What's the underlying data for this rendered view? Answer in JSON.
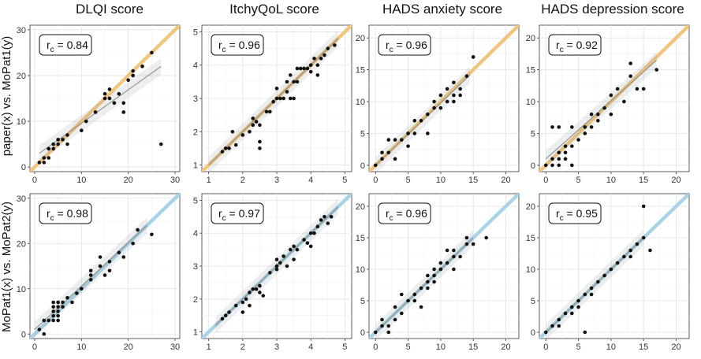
{
  "figure": {
    "col_titles": [
      "DLQI score",
      "ItchyQoL score",
      "HADS anxiety score",
      "HADS depression score"
    ],
    "row_labels": [
      "paper(x) vs. MoPat1(y)",
      "MoPat1(x) vs. MoPat2(y)"
    ],
    "identity_line_colors": [
      "#f2c57c",
      "#a9d3e6"
    ]
  },
  "chart_data": [
    {
      "type": "scatter",
      "row": 0,
      "col": 0,
      "rc": "0.84",
      "xlim": [
        -1,
        31
      ],
      "ylim": [
        -1,
        31
      ],
      "xticks": [
        0,
        10,
        20,
        30
      ],
      "yticks": [
        0,
        10,
        20,
        30
      ],
      "fit": [
        [
          1,
          3
        ],
        [
          27,
          22
        ]
      ],
      "points": [
        [
          1,
          1
        ],
        [
          2,
          2
        ],
        [
          2,
          1
        ],
        [
          3,
          2
        ],
        [
          3,
          4
        ],
        [
          4,
          4
        ],
        [
          4,
          5
        ],
        [
          5,
          5
        ],
        [
          5,
          6
        ],
        [
          6,
          6
        ],
        [
          7,
          5
        ],
        [
          7,
          7
        ],
        [
          10,
          8
        ],
        [
          11,
          10
        ],
        [
          13,
          12
        ],
        [
          15,
          15
        ],
        [
          15,
          16
        ],
        [
          16,
          17
        ],
        [
          16,
          15
        ],
        [
          17,
          14
        ],
        [
          18,
          16
        ],
        [
          19,
          14
        ],
        [
          19,
          12
        ],
        [
          20,
          19
        ],
        [
          21,
          20
        ],
        [
          21,
          21
        ],
        [
          23,
          22
        ],
        [
          25,
          25
        ],
        [
          27,
          5
        ]
      ]
    },
    {
      "type": "scatter",
      "row": 0,
      "col": 1,
      "rc": "0.96",
      "xlim": [
        0.8,
        5.2
      ],
      "ylim": [
        0.8,
        5.2
      ],
      "xticks": [
        1,
        2,
        3,
        4,
        5
      ],
      "yticks": [
        1,
        2,
        3,
        4,
        5
      ],
      "fit": [
        [
          1,
          1
        ],
        [
          4.8,
          4.8
        ]
      ],
      "points": [
        [
          1.4,
          1.4
        ],
        [
          1.5,
          1.5
        ],
        [
          1.6,
          1.5
        ],
        [
          1.7,
          2
        ],
        [
          1.8,
          1.6
        ],
        [
          2,
          1.9
        ],
        [
          2.2,
          2
        ],
        [
          2.3,
          2.4
        ],
        [
          2.3,
          2.2
        ],
        [
          2.4,
          2.3
        ],
        [
          2.5,
          1.7
        ],
        [
          2.5,
          2.2
        ],
        [
          2.5,
          1.5
        ],
        [
          2.7,
          2.6
        ],
        [
          2.8,
          2.6
        ],
        [
          2.9,
          2.9
        ],
        [
          3,
          3
        ],
        [
          3,
          3.3
        ],
        [
          3.1,
          3
        ],
        [
          3.2,
          3
        ],
        [
          3.3,
          3.5
        ],
        [
          3.3,
          3.2
        ],
        [
          3.4,
          3
        ],
        [
          3.4,
          3.7
        ],
        [
          3.5,
          3.5
        ],
        [
          3.5,
          3
        ],
        [
          3.6,
          3.5
        ],
        [
          3.6,
          3.9
        ],
        [
          3.7,
          3.9
        ],
        [
          3.8,
          3.9
        ],
        [
          3.9,
          3.9
        ],
        [
          4,
          3.8
        ],
        [
          4,
          4
        ],
        [
          4.1,
          4.2
        ],
        [
          4.2,
          4
        ],
        [
          4.2,
          3.7
        ],
        [
          4.3,
          4.2
        ],
        [
          4.4,
          4.3
        ],
        [
          4.5,
          4.5
        ],
        [
          4.7,
          4.6
        ]
      ]
    },
    {
      "type": "scatter",
      "row": 0,
      "col": 2,
      "rc": "0.96",
      "xlim": [
        -1,
        22
      ],
      "ylim": [
        -1,
        22
      ],
      "xticks": [
        0,
        5,
        10,
        15,
        20
      ],
      "yticks": [
        0,
        5,
        10,
        15,
        20
      ],
      "fit": [
        [
          0,
          0
        ],
        [
          14.5,
          14.2
        ]
      ],
      "points": [
        [
          0,
          0
        ],
        [
          1,
          1
        ],
        [
          1,
          2
        ],
        [
          2,
          2
        ],
        [
          2,
          4
        ],
        [
          3,
          1
        ],
        [
          3,
          4
        ],
        [
          4,
          4
        ],
        [
          5,
          3
        ],
        [
          5,
          5
        ],
        [
          6,
          5
        ],
        [
          6,
          7
        ],
        [
          7,
          7
        ],
        [
          8,
          5
        ],
        [
          8,
          8
        ],
        [
          9,
          9
        ],
        [
          9,
          10
        ],
        [
          10,
          9
        ],
        [
          10,
          11
        ],
        [
          11,
          10
        ],
        [
          11,
          12
        ],
        [
          12,
          10
        ],
        [
          12,
          11
        ],
        [
          12,
          13
        ],
        [
          13,
          11
        ],
        [
          13,
          12
        ],
        [
          14,
          14
        ],
        [
          15,
          17
        ],
        [
          15,
          17
        ]
      ]
    },
    {
      "type": "scatter",
      "row": 0,
      "col": 3,
      "rc": "0.92",
      "xlim": [
        -1,
        22
      ],
      "ylim": [
        -1,
        22
      ],
      "xticks": [
        0,
        5,
        10,
        15,
        20
      ],
      "yticks": [
        0,
        5,
        10,
        15,
        20
      ],
      "fit": [
        [
          0,
          1
        ],
        [
          17,
          16.5
        ]
      ],
      "points": [
        [
          0,
          0
        ],
        [
          1,
          0
        ],
        [
          1,
          6
        ],
        [
          1,
          1
        ],
        [
          2,
          0
        ],
        [
          2,
          1
        ],
        [
          2,
          6
        ],
        [
          2,
          2
        ],
        [
          3,
          1
        ],
        [
          3,
          2
        ],
        [
          3,
          3
        ],
        [
          4,
          0
        ],
        [
          4,
          6
        ],
        [
          4,
          3
        ],
        [
          5,
          4
        ],
        [
          6,
          5
        ],
        [
          6,
          6
        ],
        [
          7,
          6
        ],
        [
          7,
          8
        ],
        [
          8,
          7
        ],
        [
          8,
          8
        ],
        [
          9,
          9
        ],
        [
          10,
          8
        ],
        [
          10,
          11
        ],
        [
          11,
          12
        ],
        [
          12,
          10
        ],
        [
          13,
          14
        ],
        [
          13,
          16
        ],
        [
          14,
          12
        ],
        [
          15,
          12
        ],
        [
          17,
          15
        ]
      ]
    },
    {
      "type": "scatter",
      "row": 1,
      "col": 0,
      "rc": "0.98",
      "xlim": [
        -1,
        31
      ],
      "ylim": [
        -1,
        31
      ],
      "xticks": [
        0,
        10,
        20,
        30
      ],
      "yticks": [
        0,
        10,
        20,
        30
      ],
      "fit": [
        [
          0,
          1
        ],
        [
          24,
          24
        ]
      ],
      "points": [
        [
          1,
          1
        ],
        [
          2,
          0
        ],
        [
          2,
          3
        ],
        [
          3,
          3
        ],
        [
          4,
          4
        ],
        [
          4,
          5
        ],
        [
          4,
          6
        ],
        [
          4,
          7
        ],
        [
          4,
          3
        ],
        [
          5,
          3
        ],
        [
          5,
          4
        ],
        [
          5,
          5
        ],
        [
          5,
          6
        ],
        [
          5,
          7
        ],
        [
          6,
          6
        ],
        [
          6,
          7
        ],
        [
          7,
          8
        ],
        [
          8,
          7
        ],
        [
          9,
          9
        ],
        [
          10,
          10
        ],
        [
          12,
          12
        ],
        [
          12,
          13
        ],
        [
          12,
          14
        ],
        [
          14,
          17
        ],
        [
          14,
          15
        ],
        [
          15,
          13
        ],
        [
          16,
          14
        ],
        [
          16,
          16
        ],
        [
          18,
          18
        ],
        [
          19,
          17
        ],
        [
          21,
          20
        ],
        [
          22,
          23
        ],
        [
          25,
          22
        ]
      ]
    },
    {
      "type": "scatter",
      "row": 1,
      "col": 1,
      "rc": "0.97",
      "xlim": [
        0.8,
        5.2
      ],
      "ylim": [
        0.8,
        5.2
      ],
      "xticks": [
        1,
        2,
        3,
        4,
        5
      ],
      "yticks": [
        1,
        2,
        3,
        4,
        5
      ],
      "fit": [
        [
          1.2,
          1.2
        ],
        [
          4.8,
          4.8
        ]
      ],
      "points": [
        [
          1.4,
          1.4
        ],
        [
          1.5,
          1.5
        ],
        [
          1.6,
          1.6
        ],
        [
          1.8,
          1.8
        ],
        [
          2,
          1.6
        ],
        [
          2,
          1.9
        ],
        [
          2.1,
          2
        ],
        [
          2.2,
          2.2
        ],
        [
          2.2,
          1.8
        ],
        [
          2.3,
          2.3
        ],
        [
          2.4,
          2.3
        ],
        [
          2.5,
          2.2
        ],
        [
          2.5,
          2.4
        ],
        [
          2.6,
          2.1
        ],
        [
          2.8,
          2.8
        ],
        [
          3,
          3
        ],
        [
          3,
          3.2
        ],
        [
          3,
          2.9
        ],
        [
          3.1,
          3.1
        ],
        [
          3.2,
          3.3
        ],
        [
          3.3,
          3
        ],
        [
          3.4,
          3.5
        ],
        [
          3.5,
          3.2
        ],
        [
          3.5,
          3.6
        ],
        [
          3.6,
          3.5
        ],
        [
          3.8,
          3.8
        ],
        [
          3.9,
          3.7
        ],
        [
          4,
          4
        ],
        [
          4,
          3.6
        ],
        [
          4.1,
          4
        ],
        [
          4.2,
          4.2
        ],
        [
          4.3,
          4.4
        ],
        [
          4.4,
          4.5
        ],
        [
          4.5,
          4.3
        ],
        [
          4.6,
          4.5
        ]
      ]
    },
    {
      "type": "scatter",
      "row": 1,
      "col": 2,
      "rc": "0.96",
      "xlim": [
        -1,
        22
      ],
      "ylim": [
        -1,
        22
      ],
      "xticks": [
        0,
        5,
        10,
        15,
        20
      ],
      "yticks": [
        0,
        5,
        10,
        15,
        20
      ],
      "fit": [
        [
          0,
          0
        ],
        [
          15,
          15
        ]
      ],
      "points": [
        [
          0,
          0
        ],
        [
          1,
          2
        ],
        [
          1,
          1
        ],
        [
          2,
          0
        ],
        [
          2,
          1
        ],
        [
          3,
          2
        ],
        [
          3,
          4
        ],
        [
          4,
          3
        ],
        [
          4,
          6
        ],
        [
          5,
          5
        ],
        [
          6,
          5
        ],
        [
          6,
          6
        ],
        [
          7,
          7
        ],
        [
          7,
          4
        ],
        [
          8,
          8
        ],
        [
          8,
          7
        ],
        [
          8,
          9
        ],
        [
          9,
          8
        ],
        [
          9,
          9
        ],
        [
          9,
          10
        ],
        [
          10,
          10
        ],
        [
          10,
          11
        ],
        [
          11,
          11
        ],
        [
          11,
          13
        ],
        [
          12,
          12
        ],
        [
          12,
          10
        ],
        [
          12,
          13
        ],
        [
          13,
          12
        ],
        [
          14,
          14
        ],
        [
          14,
          15
        ],
        [
          15,
          14
        ],
        [
          17,
          15
        ]
      ]
    },
    {
      "type": "scatter",
      "row": 1,
      "col": 3,
      "rc": "0.95",
      "xlim": [
        -1,
        22
      ],
      "ylim": [
        -1,
        22
      ],
      "xticks": [
        0,
        5,
        10,
        15,
        20
      ],
      "yticks": [
        0,
        5,
        10,
        15,
        20
      ],
      "fit": [
        [
          0,
          0
        ],
        [
          15,
          15
        ]
      ],
      "points": [
        [
          0,
          0
        ],
        [
          1,
          1
        ],
        [
          2,
          2
        ],
        [
          2,
          1
        ],
        [
          3,
          3
        ],
        [
          4,
          4
        ],
        [
          4,
          3
        ],
        [
          5,
          5
        ],
        [
          5,
          4
        ],
        [
          6,
          6
        ],
        [
          6,
          0
        ],
        [
          7,
          7
        ],
        [
          7,
          6
        ],
        [
          8,
          8
        ],
        [
          9,
          9
        ],
        [
          10,
          10
        ],
        [
          11,
          11
        ],
        [
          12,
          12
        ],
        [
          13,
          13
        ],
        [
          13,
          12
        ],
        [
          14,
          14
        ],
        [
          15,
          15
        ],
        [
          15,
          20
        ],
        [
          16,
          13
        ]
      ]
    }
  ]
}
